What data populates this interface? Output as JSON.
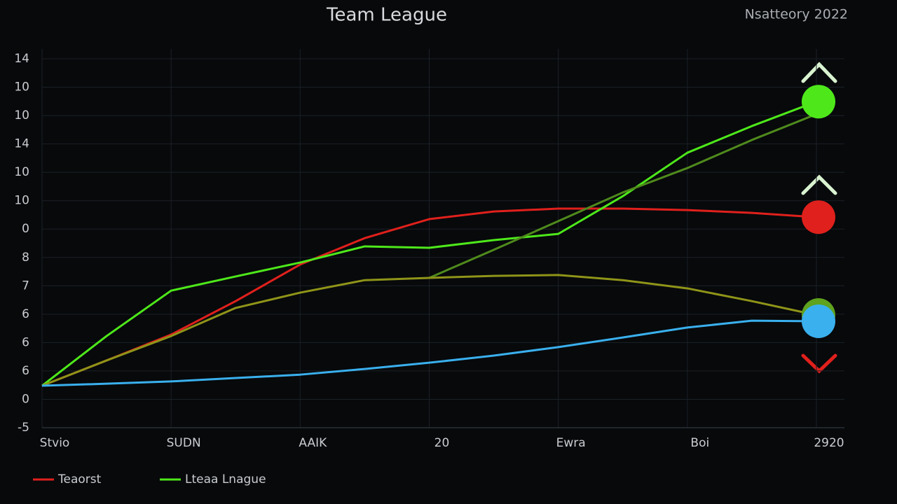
{
  "chart_data": {
    "type": "line",
    "title": "Team League",
    "subtitle": "Nsatteory 2022",
    "x": [
      0,
      0.5,
      1,
      1.5,
      2,
      2.5,
      3,
      3.5,
      4,
      4.5,
      5,
      5.5,
      6
    ],
    "xlim": [
      0,
      6
    ],
    "xticks": [
      {
        "value": 0,
        "label": "Stvio"
      },
      {
        "value": 1,
        "label": "SUDN"
      },
      {
        "value": 2,
        "label": "AAIK"
      },
      {
        "value": 3,
        "label": "20"
      },
      {
        "value": 4,
        "label": "Ewra"
      },
      {
        "value": 5,
        "label": "Boi"
      },
      {
        "value": 6,
        "label": "2920"
      }
    ],
    "ylim": [
      0,
      13
    ],
    "yticks": [
      {
        "value": 0,
        "label": "-5"
      },
      {
        "value": 1,
        "label": "0"
      },
      {
        "value": 2,
        "label": "6"
      },
      {
        "value": 3,
        "label": "6"
      },
      {
        "value": 4,
        "label": "6"
      },
      {
        "value": 5,
        "label": "7"
      },
      {
        "value": 6,
        "label": "8"
      },
      {
        "value": 7,
        "label": "0"
      },
      {
        "value": 8,
        "label": "10"
      },
      {
        "value": 9,
        "label": "10"
      },
      {
        "value": 10,
        "label": "14"
      },
      {
        "value": 11,
        "label": "10"
      },
      {
        "value": 12,
        "label": "10"
      },
      {
        "value": 13,
        "label": "14"
      }
    ],
    "grid": true,
    "series": [
      {
        "name": "Teaorst",
        "color": "#e0201c",
        "values": [
          1.48,
          2.37,
          3.28,
          4.46,
          5.75,
          6.68,
          7.35,
          7.62,
          7.72,
          7.72,
          7.67,
          7.57,
          7.42
        ]
      },
      {
        "name": "Lteaa Lnague",
        "color": "#4ee81a",
        "values": [
          1.48,
          3.23,
          4.83,
          5.33,
          5.82,
          6.39,
          6.34,
          6.61,
          6.83,
          8.16,
          9.69,
          10.63,
          11.49
        ]
      },
      {
        "color": "#4f8a1c",
        "values": [
          null,
          null,
          null,
          null,
          null,
          null,
          5.28,
          6.27,
          7.28,
          8.29,
          9.15,
          10.14,
          11.05
        ]
      },
      {
        "color": "#8f9418",
        "values": [
          1.48,
          2.37,
          3.23,
          4.22,
          4.76,
          5.2,
          5.28,
          5.35,
          5.38,
          5.2,
          4.91,
          4.46,
          3.97
        ]
      },
      {
        "color": "#3ab0ee",
        "values": [
          1.48,
          1.55,
          1.63,
          1.75,
          1.87,
          2.07,
          2.29,
          2.54,
          2.84,
          3.18,
          3.53,
          3.77,
          3.75
        ]
      }
    ]
  }
}
